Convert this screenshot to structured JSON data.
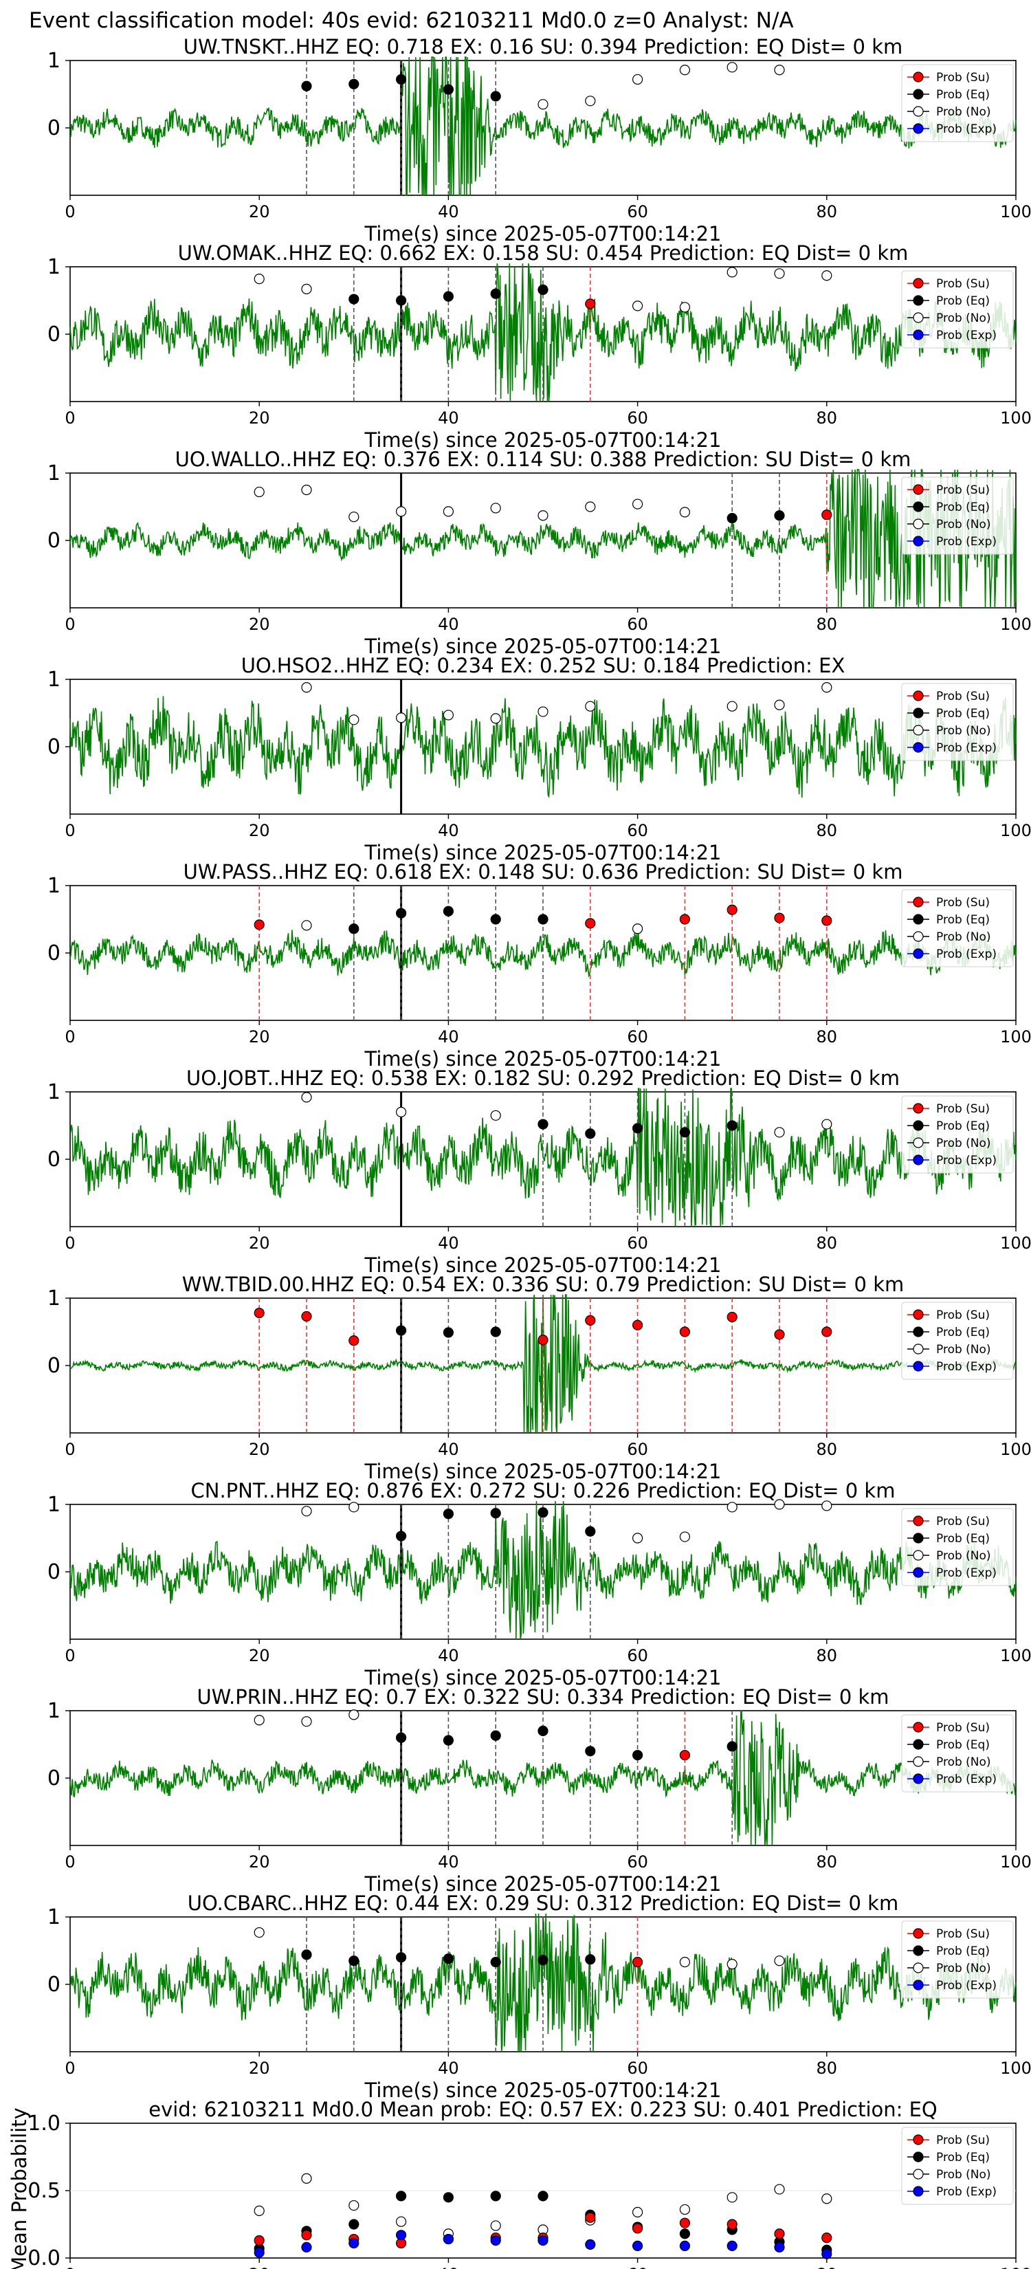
{
  "figure": {
    "suptitle": "Event classification model: 40s evid: 62103211 Md0.0 z=0 Analyst: N/A",
    "xlabel": "Time(s) since 2025-05-07T00:14:21",
    "x_ticks": [
      "0",
      "20",
      "40",
      "60",
      "80",
      "100"
    ],
    "y_ticks": [
      "0",
      "1"
    ],
    "legend": [
      "Prob (Su)",
      "Prob (Eq)",
      "Prob (No)",
      "Prob (Exp)"
    ],
    "colors": {
      "waveform": "#008000",
      "su": "#ff0000",
      "eq": "#000000",
      "no": "#ffffff",
      "exp": "#0000ff",
      "arrival": "#000000"
    }
  },
  "chart_data": [
    {
      "type": "scatter",
      "station": "UW.TNSKT..HHZ",
      "title": "UW.TNSKT..HHZ   EQ: 0.718  EX: 0.16  SU: 0.394   Prediction: EQ    Dist= 0 km",
      "arrival": 35,
      "amp": 0.28,
      "burst": [
        35,
        42,
        1.6
      ],
      "xlim": [
        0,
        100
      ],
      "eq": [
        [
          25,
          0.62
        ],
        [
          30,
          0.65
        ],
        [
          35,
          0.72
        ],
        [
          40,
          0.57
        ],
        [
          45,
          0.47
        ]
      ],
      "su": [],
      "no": [
        [
          50,
          0.35
        ],
        [
          55,
          0.4
        ],
        [
          60,
          0.72
        ],
        [
          65,
          0.86
        ],
        [
          70,
          0.9
        ],
        [
          75,
          0.86
        ]
      ]
    },
    {
      "type": "scatter",
      "station": "UW.OMAK..HHZ",
      "title": "UW.OMAK..HHZ   EQ: 0.662  EX: 0.158  SU: 0.454   Prediction: EQ    Dist= 0 km",
      "arrival": 35,
      "amp": 0.5,
      "burst": [
        45,
        50,
        1.1
      ],
      "xlim": [
        0,
        100
      ],
      "eq": [
        [
          30,
          0.52
        ],
        [
          35,
          0.5
        ],
        [
          40,
          0.56
        ],
        [
          45,
          0.6
        ],
        [
          50,
          0.66
        ]
      ],
      "su": [
        [
          55,
          0.45
        ]
      ],
      "no": [
        [
          20,
          0.82
        ],
        [
          25,
          0.67
        ],
        [
          60,
          0.42
        ],
        [
          65,
          0.4
        ],
        [
          70,
          0.92
        ],
        [
          75,
          0.9
        ],
        [
          80,
          0.87
        ]
      ]
    },
    {
      "type": "scatter",
      "station": "UO.WALLO..HHZ",
      "title": "UO.WALLO..HHZ   EQ: 0.376  EX: 0.114  SU: 0.388   Prediction: SU    Dist= 0 km",
      "arrival": 35,
      "amp": 0.25,
      "burst": [
        80,
        100,
        1.2
      ],
      "xlim": [
        0,
        100
      ],
      "eq": [
        [
          70,
          0.33
        ],
        [
          75,
          0.37
        ]
      ],
      "su": [
        [
          80,
          0.38
        ]
      ],
      "no": [
        [
          20,
          0.72
        ],
        [
          25,
          0.75
        ],
        [
          30,
          0.35
        ],
        [
          35,
          0.43
        ],
        [
          40,
          0.43
        ],
        [
          45,
          0.48
        ],
        [
          50,
          0.37
        ],
        [
          55,
          0.5
        ],
        [
          60,
          0.54
        ],
        [
          65,
          0.42
        ]
      ]
    },
    {
      "type": "scatter",
      "station": "UO.HSO2..HHZ",
      "title": "UO.HSO2..HHZ   EQ: 0.234  EX: 0.252  SU: 0.184   Prediction: EX",
      "arrival": 35,
      "amp": 0.7,
      "burst": [
        0,
        0,
        0
      ],
      "xlim": [
        0,
        100
      ],
      "eq": [],
      "su": [],
      "no": [
        [
          25,
          0.88
        ],
        [
          30,
          0.4
        ],
        [
          35,
          0.43
        ],
        [
          40,
          0.47
        ],
        [
          45,
          0.42
        ],
        [
          50,
          0.52
        ],
        [
          55,
          0.6
        ],
        [
          70,
          0.6
        ],
        [
          75,
          0.62
        ],
        [
          80,
          0.88
        ]
      ]
    },
    {
      "type": "scatter",
      "station": "UW.PASS..HHZ",
      "title": "UW.PASS..HHZ   EQ: 0.618  EX: 0.148  SU: 0.636   Prediction: SU    Dist= 0 km",
      "arrival": 35,
      "amp": 0.3,
      "burst": [
        0,
        0,
        0
      ],
      "xlim": [
        0,
        100
      ],
      "eq": [
        [
          30,
          0.36
        ],
        [
          35,
          0.59
        ],
        [
          40,
          0.62
        ],
        [
          45,
          0.5
        ],
        [
          50,
          0.5
        ]
      ],
      "su": [
        [
          20,
          0.42
        ],
        [
          55,
          0.44
        ],
        [
          65,
          0.5
        ],
        [
          70,
          0.64
        ],
        [
          75,
          0.52
        ],
        [
          80,
          0.48
        ]
      ],
      "no": [
        [
          25,
          0.41
        ],
        [
          60,
          0.36
        ]
      ]
    },
    {
      "type": "scatter",
      "station": "UO.JOBT..HHZ",
      "title": "UO.JOBT..HHZ   EQ: 0.538  EX: 0.182  SU: 0.292   Prediction: EQ    Dist= 0 km",
      "arrival": 35,
      "amp": 0.55,
      "burst": [
        60,
        70,
        1.0
      ],
      "xlim": [
        0,
        100
      ],
      "eq": [
        [
          50,
          0.52
        ],
        [
          55,
          0.38
        ],
        [
          60,
          0.46
        ],
        [
          65,
          0.4
        ],
        [
          70,
          0.5
        ]
      ],
      "su": [],
      "no": [
        [
          25,
          0.92
        ],
        [
          35,
          0.7
        ],
        [
          45,
          0.65
        ],
        [
          75,
          0.4
        ],
        [
          80,
          0.52
        ]
      ]
    },
    {
      "type": "scatter",
      "station": "WW.TBID.00.HHZ",
      "title": "WW.TBID.00.HHZ   EQ: 0.54  EX: 0.336  SU: 0.79   Prediction: SU    Dist= 0 km",
      "arrival": 35,
      "amp": 0.08,
      "burst": [
        48,
        52,
        1.3
      ],
      "xlim": [
        0,
        100
      ],
      "eq": [
        [
          35,
          0.52
        ],
        [
          40,
          0.49
        ],
        [
          45,
          0.5
        ]
      ],
      "su": [
        [
          20,
          0.78
        ],
        [
          25,
          0.73
        ],
        [
          30,
          0.37
        ],
        [
          50,
          0.38
        ],
        [
          55,
          0.67
        ],
        [
          60,
          0.6
        ],
        [
          65,
          0.5
        ],
        [
          70,
          0.72
        ],
        [
          75,
          0.46
        ],
        [
          80,
          0.5
        ]
      ],
      "no": []
    },
    {
      "type": "scatter",
      "station": "CN.PNT..HHZ",
      "title": "CN.PNT..HHZ   EQ: 0.876  EX: 0.272  SU: 0.226   Prediction: EQ    Dist= 0 km",
      "arrival": 35,
      "amp": 0.45,
      "burst": [
        45,
        52,
        0.9
      ],
      "xlim": [
        0,
        100
      ],
      "eq": [
        [
          35,
          0.53
        ],
        [
          40,
          0.86
        ],
        [
          45,
          0.87
        ],
        [
          50,
          0.88
        ],
        [
          55,
          0.6
        ]
      ],
      "su": [],
      "no": [
        [
          25,
          0.9
        ],
        [
          30,
          0.96
        ],
        [
          60,
          0.5
        ],
        [
          65,
          0.52
        ],
        [
          70,
          0.96
        ],
        [
          75,
          1.0
        ],
        [
          80,
          0.98
        ]
      ]
    },
    {
      "type": "scatter",
      "station": "UW.PRIN..HHZ",
      "title": "UW.PRIN..HHZ   EQ: 0.7  EX: 0.322  SU: 0.334   Prediction: EQ    Dist= 0 km",
      "arrival": 35,
      "amp": 0.25,
      "burst": [
        70,
        75,
        1.1
      ],
      "xlim": [
        0,
        100
      ],
      "eq": [
        [
          35,
          0.6
        ],
        [
          40,
          0.56
        ],
        [
          45,
          0.63
        ],
        [
          50,
          0.7
        ],
        [
          55,
          0.4
        ],
        [
          60,
          0.34
        ],
        [
          70,
          0.47
        ]
      ],
      "su": [
        [
          65,
          0.34
        ]
      ],
      "no": [
        [
          20,
          0.86
        ],
        [
          25,
          0.84
        ],
        [
          30,
          0.94
        ]
      ]
    },
    {
      "type": "scatter",
      "station": "UO.CBARC..HHZ",
      "title": "UO.CBARC..HHZ   EQ: 0.44  EX: 0.29  SU: 0.312   Prediction: EQ    Dist= 0 km",
      "arrival": 35,
      "amp": 0.5,
      "burst": [
        45,
        55,
        0.9
      ],
      "xlim": [
        0,
        100
      ],
      "eq": [
        [
          25,
          0.44
        ],
        [
          30,
          0.35
        ],
        [
          35,
          0.4
        ],
        [
          40,
          0.38
        ],
        [
          45,
          0.33
        ],
        [
          50,
          0.36
        ],
        [
          55,
          0.37
        ]
      ],
      "su": [
        [
          60,
          0.33
        ]
      ],
      "no": [
        [
          20,
          0.77
        ],
        [
          65,
          0.33
        ],
        [
          70,
          0.3
        ],
        [
          75,
          0.35
        ]
      ]
    },
    {
      "type": "scatter",
      "title": "evid: 62103211  Md0.0   Mean prob:    EQ: 0.57  EX: 0.223  SU: 0.401   Prediction: EQ",
      "ylabel": "Mean Probability",
      "xlim": [
        0,
        100
      ],
      "ylim": [
        0,
        1
      ],
      "y_ticks": [
        "0.0",
        "0.5",
        "1.0"
      ],
      "x": [
        20,
        25,
        30,
        35,
        40,
        45,
        50,
        55,
        60,
        65,
        70,
        75,
        80
      ],
      "su": [
        0.13,
        0.17,
        0.14,
        0.11,
        0.14,
        0.15,
        0.15,
        0.3,
        0.22,
        0.26,
        0.25,
        0.18,
        0.15
      ],
      "eq": [
        0.07,
        0.2,
        0.25,
        0.46,
        0.45,
        0.46,
        0.46,
        0.32,
        0.23,
        0.18,
        0.21,
        0.12,
        0.06
      ],
      "no": [
        0.35,
        0.59,
        0.39,
        0.27,
        0.18,
        0.24,
        0.21,
        0.28,
        0.34,
        0.36,
        0.45,
        0.51,
        0.44
      ],
      "exp": [
        0.04,
        0.08,
        0.11,
        0.17,
        0.14,
        0.13,
        0.13,
        0.1,
        0.09,
        0.09,
        0.09,
        0.08,
        0.03
      ]
    }
  ]
}
